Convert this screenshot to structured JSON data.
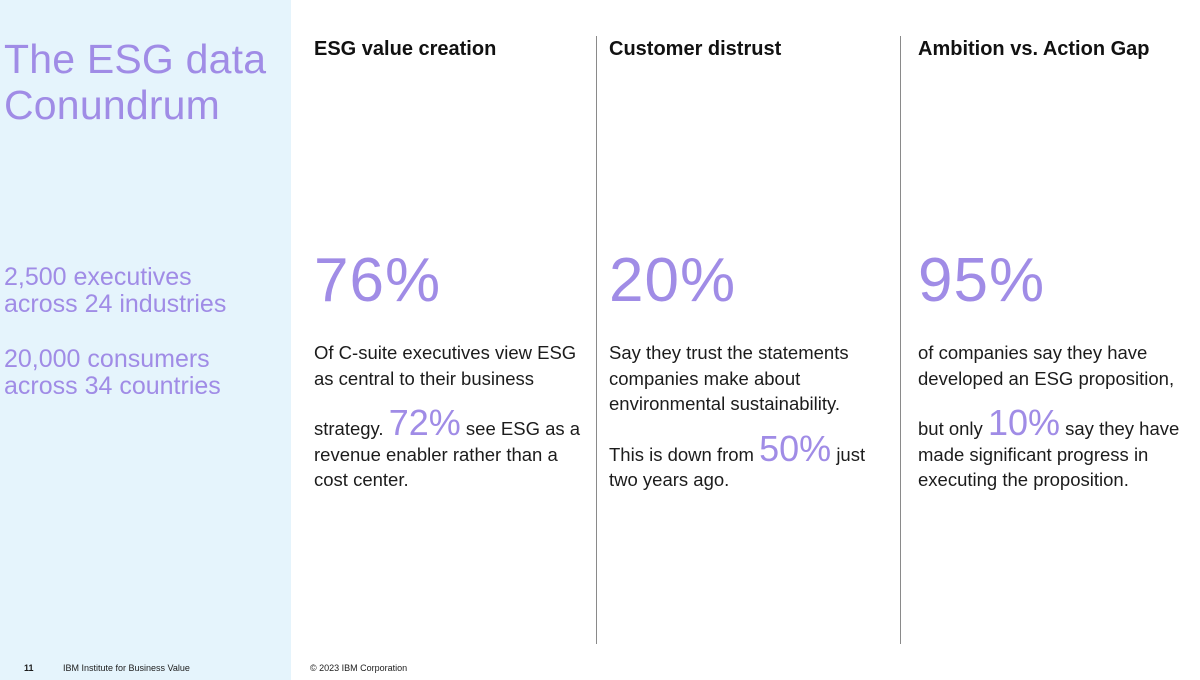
{
  "sidebar": {
    "title_line1": "The ESG data",
    "title_line2": "Conundrum",
    "stat1_line1": "2,500 executives",
    "stat1_line2": "across 24 industries",
    "stat2_line1": "20,000 consumers",
    "stat2_line2": "across 34 countries"
  },
  "columns": [
    {
      "heading": "ESG value creation",
      "big_stat": "76%",
      "text1": "Of C-suite executives view ESG as central to their business",
      "text2_pre": "strategy.",
      "inline_stat": "72%",
      "text2_post": "see ESG as a revenue enabler rather than a cost center."
    },
    {
      "heading": "Customer distrust",
      "big_stat": "20%",
      "text1": "Say they trust the statements companies make about environmental sustainability.",
      "text2_pre": "This is down from",
      "inline_stat": "50%",
      "text2_post": "just two years ago."
    },
    {
      "heading": "Ambition vs. Action Gap",
      "big_stat": "95%",
      "text1": "of companies say they have developed an ESG proposition,",
      "text2_pre": "but only",
      "inline_stat": "10%",
      "text2_post": "say they have made significant progress in executing the proposition."
    }
  ],
  "footer": {
    "page_number": "11",
    "org": "IBM Institute for Business Value",
    "copyright": "© 2023 IBM Corporation"
  },
  "colors": {
    "accent": "#a08ce6",
    "sidebar_bg": "#e5f4fc",
    "text": "#1c1c1c",
    "divider": "#8a8a8a"
  }
}
